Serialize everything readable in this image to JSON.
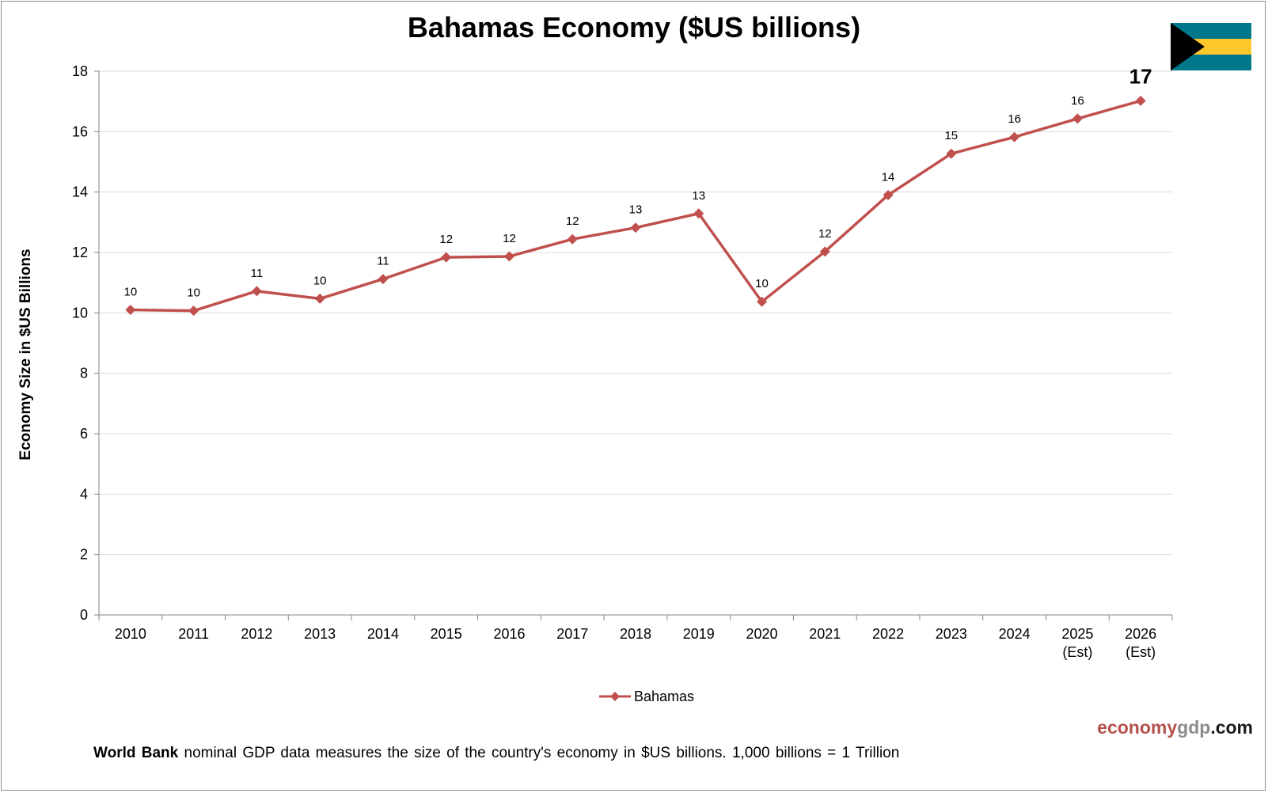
{
  "chart_data": {
    "type": "line",
    "title": "Bahamas Economy ($US billions)",
    "xlabel": "",
    "ylabel": "Economy Size in $US Billions",
    "categories": [
      "2010",
      "2011",
      "2012",
      "2013",
      "2014",
      "2015",
      "2016",
      "2017",
      "2018",
      "2019",
      "2020",
      "2021",
      "2022",
      "2023",
      "2024",
      "2025\n(Est)",
      "2026\n(Est)"
    ],
    "series": [
      {
        "name": "Bahamas",
        "color": "#c0504d",
        "values": [
          10.1,
          10.07,
          10.72,
          10.47,
          11.12,
          11.84,
          11.87,
          12.44,
          12.82,
          13.29,
          10.37,
          12.03,
          13.9,
          15.27,
          15.82,
          16.43,
          17.02
        ],
        "data_labels": [
          "10",
          "10",
          "11",
          "10",
          "11",
          "12",
          "12",
          "12",
          "13",
          "13",
          "10",
          "12",
          "14",
          "15",
          "16",
          "16",
          "17"
        ]
      }
    ],
    "ylim": [
      0,
      18
    ],
    "yticks": [
      0,
      2,
      4,
      6,
      8,
      10,
      12,
      14,
      16,
      18
    ],
    "ytick_labels": [
      "0",
      "2",
      "4",
      "6",
      "8",
      "10",
      "12",
      "14",
      "16",
      "18"
    ],
    "grid": true,
    "legend_position": "bottom",
    "highlight_last_label": true
  },
  "flag": {
    "name": "bahamas-flag",
    "colors": {
      "aquamarine": "#00778b",
      "gold": "#ffc72c",
      "black": "#000000"
    }
  },
  "brand": {
    "part1": "economy",
    "part2": "gdp",
    "part3": ".com"
  },
  "footnote": {
    "bold": "World Bank",
    "text": " nominal GDP data  measures the size of the country's economy in $US billions. 1,000 billions = 1 Trillion"
  }
}
